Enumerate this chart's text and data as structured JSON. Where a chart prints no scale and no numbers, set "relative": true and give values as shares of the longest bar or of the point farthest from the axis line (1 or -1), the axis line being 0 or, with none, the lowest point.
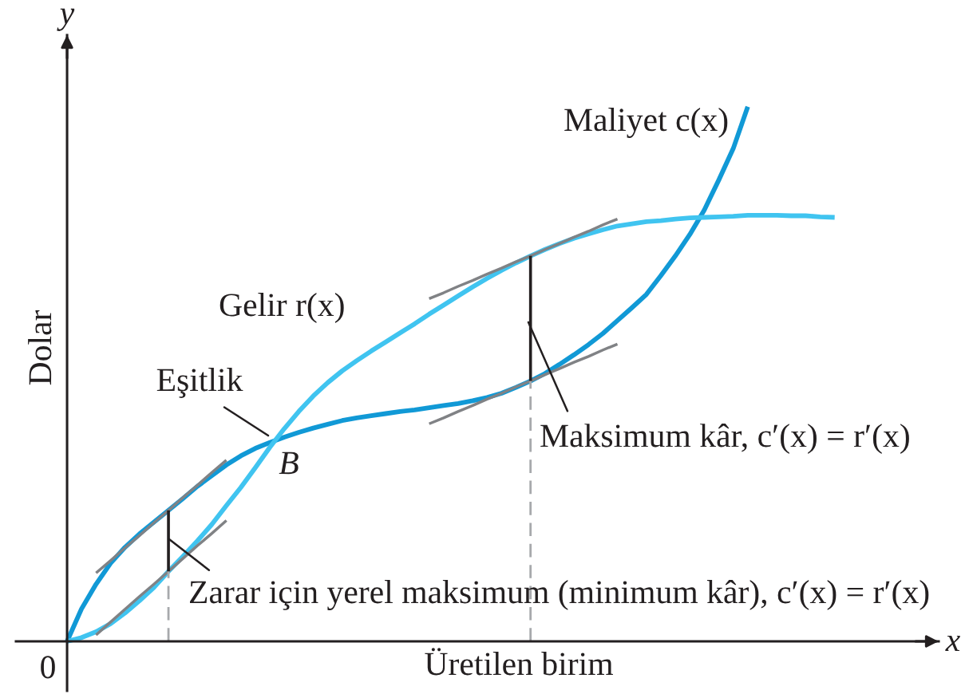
{
  "chart_data": {
    "type": "line",
    "relative": true,
    "tick_labels": false,
    "xlabel": "Üretilen birim",
    "ylabel": "Dolar",
    "categories": [
      null,
      null,
      null,
      null,
      null,
      null,
      null,
      null,
      null,
      null,
      null,
      null,
      null,
      null,
      null,
      null,
      null,
      null,
      null,
      null,
      null,
      null,
      null,
      null,
      null,
      null,
      null,
      null,
      null,
      null,
      null,
      null,
      null,
      null,
      null,
      null,
      null,
      null,
      null,
      null,
      null,
      null,
      null,
      null,
      null,
      null,
      null,
      null,
      null,
      null,
      null,
      null,
      null,
      null
    ],
    "series": [
      {
        "name": "Maliyet c(x)",
        "color": "#1199d6",
        "values": [
          0,
          0.061,
          0.107,
          0.146,
          0.176,
          0.201,
          0.223,
          0.245,
          0.267,
          0.29,
          0.31,
          0.33,
          0.347,
          0.361,
          0.372,
          0.382,
          0.391,
          0.399,
          0.406,
          0.413,
          0.418,
          0.422,
          0.426,
          0.43,
          0.433,
          0.437,
          0.441,
          0.445,
          0.45,
          0.456,
          0.464,
          0.475,
          0.487,
          0.501,
          0.518,
          0.536,
          0.555,
          0.576,
          0.6,
          0.624,
          0.649,
          0.684,
          0.721,
          0.761,
          0.807,
          0.863,
          0.922,
          1,
          null,
          null,
          null,
          null,
          null,
          null
        ]
      },
      {
        "name": "Gelir r(x)",
        "color": "#40c4f0",
        "values": [
          0,
          0.007,
          0.018,
          0.033,
          0.053,
          0.076,
          0.101,
          0.131,
          0.159,
          0.188,
          0.219,
          0.254,
          0.288,
          0.325,
          0.363,
          0.398,
          0.43,
          0.459,
          0.484,
          0.506,
          0.525,
          0.543,
          0.56,
          0.577,
          0.594,
          0.612,
          0.629,
          0.646,
          0.663,
          0.679,
          0.694,
          0.708,
          0.721,
          0.733,
          0.744,
          0.754,
          0.762,
          0.77,
          0.777,
          0.781,
          0.785,
          0.787,
          0.79,
          0.792,
          0.793,
          0.794,
          0.795,
          0.797,
          0.797,
          0.797,
          0.796,
          0.796,
          0.794,
          0.793
        ]
      },
      {
        "color": "#808285",
        "values": [
          null,
          null,
          0.128,
          0.151,
          0.175,
          0.198,
          0.222,
          0.245,
          0.269,
          0.292,
          0.316,
          0.339,
          null,
          null,
          null,
          null,
          null,
          null,
          null,
          null,
          null,
          null,
          null,
          null,
          null,
          null,
          null,
          null,
          null,
          null,
          null,
          null,
          null,
          null,
          null,
          null,
          null,
          null,
          null,
          null,
          null,
          null,
          null,
          null,
          null,
          null,
          null,
          null,
          null,
          null,
          null,
          null,
          null,
          null
        ]
      },
      {
        "color": "#808285",
        "values": [
          null,
          null,
          0.012,
          0.036,
          0.06,
          0.084,
          0.107,
          0.131,
          0.155,
          0.179,
          0.202,
          0.226,
          null,
          null,
          null,
          null,
          null,
          null,
          null,
          null,
          null,
          null,
          null,
          null,
          null,
          null,
          null,
          null,
          null,
          null,
          null,
          null,
          null,
          null,
          null,
          null,
          null,
          null,
          null,
          null,
          null,
          null,
          null,
          null,
          null,
          null,
          null,
          null,
          null,
          null,
          null,
          null,
          null,
          null
        ]
      },
      {
        "color": "#808285",
        "values": [
          null,
          null,
          null,
          null,
          null,
          null,
          null,
          null,
          null,
          null,
          null,
          null,
          null,
          null,
          null,
          null,
          null,
          null,
          null,
          null,
          null,
          null,
          null,
          null,
          null,
          0.407,
          0.418,
          0.43,
          0.441,
          0.453,
          0.464,
          0.476,
          0.487,
          0.499,
          0.51,
          0.522,
          0.533,
          0.545,
          0.556,
          null,
          null,
          null,
          null,
          null,
          null,
          null,
          null,
          null,
          null,
          null,
          null,
          null,
          null,
          null
        ]
      },
      {
        "color": "#808285",
        "values": [
          null,
          null,
          null,
          null,
          null,
          null,
          null,
          null,
          null,
          null,
          null,
          null,
          null,
          null,
          null,
          null,
          null,
          null,
          null,
          null,
          null,
          null,
          null,
          null,
          null,
          0.641,
          0.652,
          0.664,
          0.675,
          0.687,
          0.698,
          0.71,
          0.721,
          0.733,
          0.744,
          0.756,
          0.767,
          0.779,
          0.79,
          null,
          null,
          null,
          null,
          null,
          null,
          null,
          null,
          null,
          null,
          null,
          null,
          null,
          null,
          null
        ]
      }
    ],
    "annotations": [
      "Eşitlik",
      "B",
      "Maksimum kâr, c′(x) = r′(x)",
      "Zarar için yerel maksimum (minimum kâr), c′(x) = r′(x)",
      "0",
      "x",
      "y"
    ]
  }
}
